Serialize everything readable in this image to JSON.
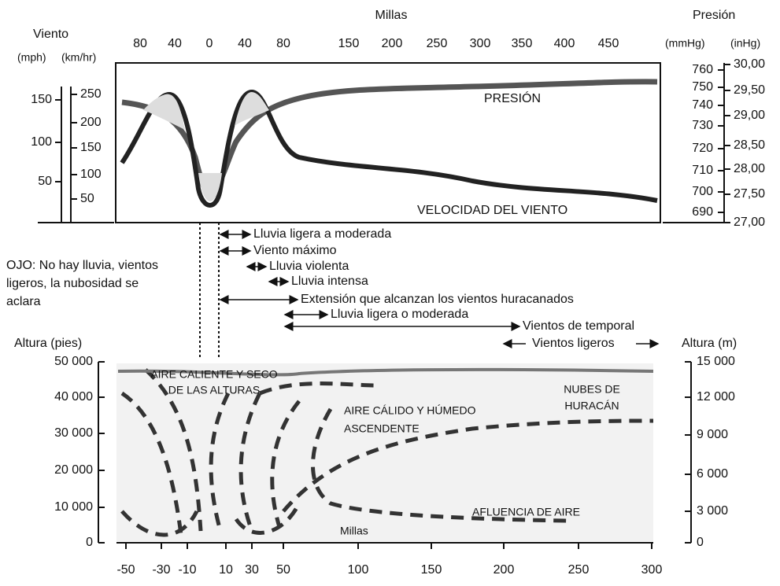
{
  "top": {
    "title": "Millas",
    "left_title": "Viento",
    "left_units": [
      "(mph)",
      "(km/hr)"
    ],
    "right_title": "Presión",
    "right_units": [
      "(mmHg)",
      "(inHg)"
    ],
    "miles_ticks": [
      80,
      40,
      0,
      40,
      80,
      150,
      200,
      250,
      300,
      350,
      400,
      450
    ],
    "mph_ticks": [
      150,
      100,
      50
    ],
    "kmh_ticks": [
      250,
      200,
      150,
      100,
      50
    ],
    "mmhg_ticks": [
      760,
      750,
      740,
      730,
      720,
      710,
      700,
      690
    ],
    "inhg_ticks": [
      "30,00",
      "29,50",
      "29,00",
      "28,50",
      "28,00",
      "27,50",
      "27,00"
    ],
    "curve_labels": [
      "PRESIÓN",
      "VELOCIDAD DEL VIENTO"
    ]
  },
  "eye_note": [
    "OJO:  No hay lluvia, vientos",
    "ligeros, la nubosidad se",
    "aclara"
  ],
  "zones": [
    "Lluvia ligera a moderada",
    "Viento máximo",
    "Lluvia violenta",
    "Lluvia intensa",
    "Extensión que alcanzan los vientos huracanados",
    "Lluvia ligera o moderada",
    "Vientos de temporal",
    "Vientos ligeros"
  ],
  "bottom": {
    "left_title": "Altura (pies)",
    "right_title": "Altura (m)",
    "feet_ticks": [
      "50 000",
      "40 000",
      "30 000",
      "20 000",
      "10 000",
      "0"
    ],
    "meter_ticks": [
      "15 000",
      "12 000",
      "9 000",
      "6 000",
      "3 000",
      "0"
    ],
    "miles_ticks": [
      -50,
      -30,
      -10,
      10,
      30,
      50,
      100,
      150,
      200,
      250,
      300
    ],
    "axis_label": "Millas",
    "labels": [
      [
        "AIRE CALIENTE Y SECO",
        "DE LAS ALTURAS"
      ],
      [
        "AIRE CÁLIDO Y HÚMEDO",
        "ASCENDENTE"
      ],
      [
        "NUBES DE",
        "HURACÁN"
      ],
      [
        "AFLUENCIA DE AIRE"
      ]
    ]
  }
}
